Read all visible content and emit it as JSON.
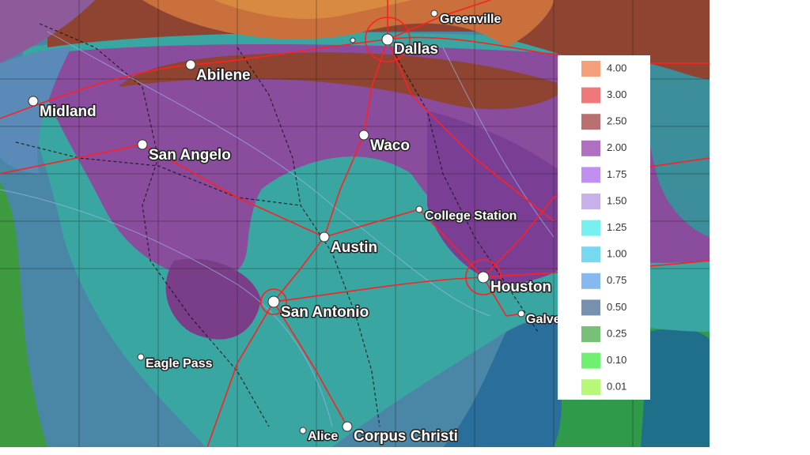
{
  "cities": [
    {
      "name": "Greenville"
    },
    {
      "name": "Dallas"
    },
    {
      "name": "Abilene"
    },
    {
      "name": "Midland"
    },
    {
      "name": "San Angelo"
    },
    {
      "name": "Waco"
    },
    {
      "name": "College Station"
    },
    {
      "name": "Austin"
    },
    {
      "name": "Houston"
    },
    {
      "name": "San Antonio"
    },
    {
      "name": "Galve"
    },
    {
      "name": "Eagle Pass"
    },
    {
      "name": "Alice"
    },
    {
      "name": "Corpus Christi"
    }
  ],
  "legend": {
    "items": [
      {
        "label": "4.00",
        "color": "#f4a07a"
      },
      {
        "label": "3.00",
        "color": "#f07878"
      },
      {
        "label": "2.50",
        "color": "#b87070"
      },
      {
        "label": "2.00",
        "color": "#b070c0"
      },
      {
        "label": "1.75",
        "color": "#c090f0"
      },
      {
        "label": "1.50",
        "color": "#c8b0e8"
      },
      {
        "label": "1.25",
        "color": "#78f0f0"
      },
      {
        "label": "1.00",
        "color": "#78d8f0"
      },
      {
        "label": "0.75",
        "color": "#88b8f0"
      },
      {
        "label": "0.50",
        "color": "#7890b0"
      },
      {
        "label": "0.25",
        "color": "#78c078"
      },
      {
        "label": "0.10",
        "color": "#70f070"
      },
      {
        "label": "0.01",
        "color": "#b8f878"
      }
    ]
  }
}
